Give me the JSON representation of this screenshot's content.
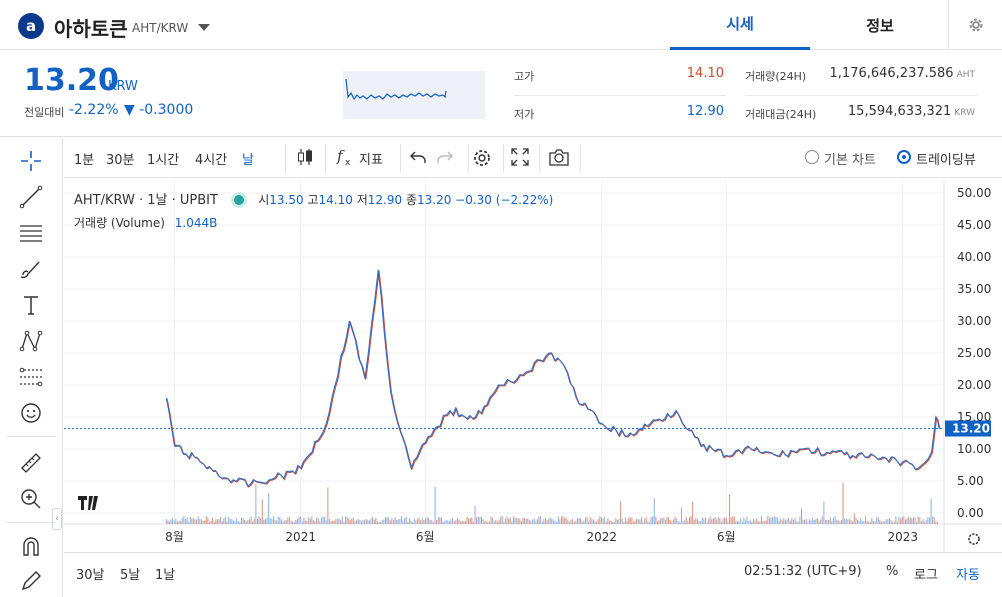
{
  "header": {
    "logo_letter": "a",
    "coin_name": "아하토큰",
    "coin_pair": "AHT/KRW",
    "tabs": [
      {
        "label": "시세",
        "active": true
      },
      {
        "label": "정보",
        "active": false
      }
    ]
  },
  "summary": {
    "price": "13.20",
    "price_unit": "KRW",
    "change_label": "전일대비",
    "change_pct": "-2.22%",
    "change_amt": "▼ -0.3000",
    "high_label": "고가",
    "high_value": "14.10",
    "low_label": "저가",
    "low_value": "12.90",
    "volume_label": "거래량(24H)",
    "volume_value": "1,176,646,237.586",
    "volume_unit": "AHT",
    "amount_label": "거래대금(24H)",
    "amount_value": "15,594,633,321",
    "amount_unit": "KRW",
    "colors": {
      "up": "#c84a31",
      "down": "#1261c4"
    }
  },
  "toolbar": {
    "intervals": [
      "1분",
      "30분",
      "1시간",
      "4시간",
      "날"
    ],
    "active_interval": "날",
    "indicator_label": "지표",
    "chart_types": [
      {
        "label": "기본 차트",
        "selected": false
      },
      {
        "label": "트레이딩뷰",
        "selected": true
      }
    ]
  },
  "left_tools": [
    "crosshair-icon",
    "trend-line-icon",
    "horizontal-lines-icon",
    "brush-icon",
    "text-icon",
    "pattern-icon",
    "fib-icon",
    "emoji-icon",
    "ruler-icon",
    "zoom-in-icon",
    "magnet-icon",
    "pencil-lock-icon"
  ],
  "legend": {
    "symbol": "AHT/KRW · 1날 · UPBIT",
    "open_label": "시",
    "open": "13.50",
    "high_label": "고",
    "high": "14.10",
    "low_label": "저",
    "low": "12.90",
    "close_label": "종",
    "close": "13.20",
    "change": "−0.30 (−2.22%)",
    "volume_label": "거래량 (Volume)",
    "volume_value": "1.044B"
  },
  "bottom": {
    "ranges": [
      "30날",
      "5날",
      "1날"
    ],
    "clock": "02:51:32 (UTC+9)",
    "percent_label": "%",
    "log_label": "로그",
    "auto_label": "자동"
  },
  "chart_data": {
    "type": "line",
    "title": "AHT/KRW · 1날 · UPBIT",
    "xlabel": "",
    "ylabel": "",
    "x_ticks": [
      "8월",
      "2021",
      "6월",
      "2022",
      "6월",
      "2023"
    ],
    "y_ticks": [
      "50.00",
      "45.00",
      "40.00",
      "35.00",
      "30.00",
      "25.00",
      "20.00",
      "15.00",
      "10.00",
      "5.00",
      "0.00"
    ],
    "ylim": [
      0,
      50
    ],
    "last_price": "13.20",
    "last_price_value": 13.2,
    "grid": true,
    "x": [
      "2020-07-22",
      "2020-08-01",
      "2020-09-01",
      "2020-10-01",
      "2020-11-01",
      "2020-12-01",
      "2021-01-01",
      "2021-02-01",
      "2021-03-01",
      "2021-03-20",
      "2021-04-05",
      "2021-04-20",
      "2021-05-01",
      "2021-05-15",
      "2021-06-01",
      "2021-06-15",
      "2021-07-01",
      "2021-08-01",
      "2021-09-01",
      "2021-10-01",
      "2021-11-01",
      "2021-11-20",
      "2021-12-01",
      "2022-01-01",
      "2022-02-01",
      "2022-03-01",
      "2022-04-01",
      "2022-05-01",
      "2022-06-01",
      "2022-07-01",
      "2022-08-01",
      "2022-09-01",
      "2022-10-01",
      "2022-11-01",
      "2022-12-01",
      "2023-01-01",
      "2023-01-20",
      "2023-02-01",
      "2023-02-05",
      "2023-02-10",
      "2023-02-14"
    ],
    "series": [
      {
        "name": "close",
        "values": [
          18.0,
          10.5,
          8.0,
          5.5,
          4.5,
          5.5,
          7.0,
          14.0,
          30.0,
          21.0,
          38.0,
          19.0,
          13.0,
          7.0,
          11.0,
          13.5,
          16.0,
          15.0,
          20.0,
          22.0,
          25.0,
          22.0,
          18.0,
          14.0,
          12.0,
          14.0,
          16.0,
          10.5,
          9.0,
          10.0,
          9.0,
          10.0,
          9.5,
          9.0,
          8.5,
          8.0,
          7.0,
          8.5,
          9.5,
          15.0,
          13.2
        ]
      }
    ],
    "volume_series": {
      "name": "거래량 (Volume)",
      "last": "1.044B"
    }
  }
}
